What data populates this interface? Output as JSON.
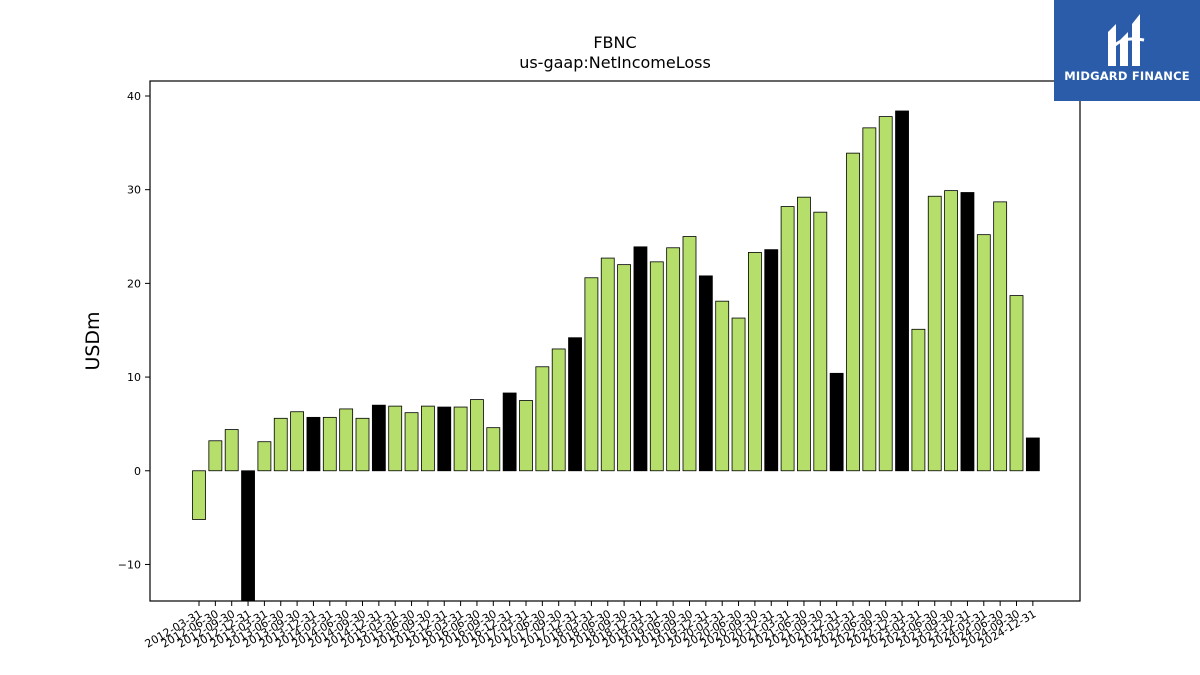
{
  "chart_data": {
    "type": "bar",
    "title": "FBNC",
    "subtitle": "us-gaap:NetIncomeLoss",
    "ylabel": "USDm",
    "xlabel": "",
    "ylim": [
      -13.9,
      41.6
    ],
    "yticks": [
      -10,
      0,
      10,
      20,
      30,
      40
    ],
    "grid": false,
    "colors": {
      "quarterly": "#b5de6a",
      "annual": "#000000"
    },
    "categories": [
      "2012-03-31",
      "2012-06-30",
      "2012-09-30",
      "2012-12-31",
      "2013-03-31",
      "2013-06-30",
      "2013-09-30",
      "2013-12-31",
      "2014-03-31",
      "2014-06-30",
      "2014-09-30",
      "2014-12-31",
      "2015-03-31",
      "2015-06-30",
      "2015-09-30",
      "2015-12-31",
      "2016-03-31",
      "2016-06-30",
      "2016-09-30",
      "2016-12-31",
      "2017-03-31",
      "2017-06-30",
      "2017-09-30",
      "2017-12-31",
      "2018-03-31",
      "2018-06-30",
      "2018-09-30",
      "2018-12-31",
      "2019-03-31",
      "2019-06-30",
      "2019-09-30",
      "2019-12-31",
      "2020-03-31",
      "2020-06-30",
      "2020-09-30",
      "2020-12-31",
      "2021-03-31",
      "2021-06-30",
      "2021-09-30",
      "2021-12-31",
      "2022-03-31",
      "2022-06-30",
      "2022-09-30",
      "2022-12-31",
      "2023-03-31",
      "2023-06-30",
      "2023-09-30",
      "2023-12-31",
      "2024-03-31",
      "2024-06-30",
      "2024-09-30",
      "2024-12-31"
    ],
    "series": [
      {
        "values": [
          -5.2,
          3.2,
          4.4,
          -13.9,
          3.1,
          5.6,
          6.3,
          5.7,
          5.7,
          6.6,
          5.6,
          7.0,
          6.9,
          6.2,
          6.9,
          6.8,
          6.8,
          7.6,
          4.6,
          8.3,
          7.5,
          11.1,
          13.0,
          14.2,
          20.6,
          22.7,
          22.0,
          23.9,
          22.3,
          23.8,
          25.0,
          20.8,
          18.1,
          16.3,
          23.3,
          23.6,
          28.2,
          29.2,
          27.6,
          10.4,
          33.9,
          36.6,
          37.8,
          38.4,
          15.1,
          29.3,
          29.9,
          29.7,
          25.2,
          28.7,
          18.7,
          3.5
        ],
        "period": [
          "Q",
          "Q",
          "Q",
          "FY",
          "Q",
          "Q",
          "Q",
          "FY",
          "Q",
          "Q",
          "Q",
          "FY",
          "Q",
          "Q",
          "Q",
          "FY",
          "Q",
          "Q",
          "Q",
          "FY",
          "Q",
          "Q",
          "Q",
          "FY",
          "Q",
          "Q",
          "Q",
          "FY",
          "Q",
          "Q",
          "Q",
          "FY",
          "Q",
          "Q",
          "Q",
          "FY",
          "Q",
          "Q",
          "Q",
          "FY",
          "Q",
          "Q",
          "Q",
          "FY",
          "Q",
          "Q",
          "Q",
          "FY",
          "Q",
          "Q",
          "Q",
          "FY"
        ]
      }
    ]
  },
  "logo": {
    "text": "MIDGARD FINANCE",
    "mark": "MF-monogram"
  }
}
